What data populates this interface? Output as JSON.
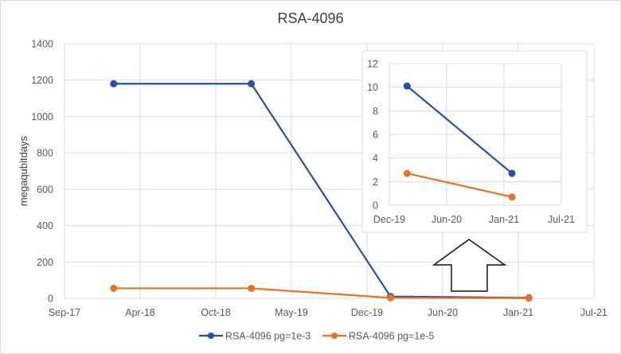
{
  "chart_data": {
    "type": "line",
    "title": "RSA-4096",
    "xlabel": "",
    "ylabel": "megaqubitdays",
    "xlim": [
      "2017-09-25",
      "2021-07-26"
    ],
    "x_tick_step_days": 200,
    "x_tick_labels": [
      "Sep-17",
      "Apr-18",
      "Oct-18",
      "May-19",
      "Dec-19",
      "Jun-20",
      "Jan-21",
      "Jul-21"
    ],
    "ylim": [
      0,
      1400
    ],
    "y_ticks": [
      0,
      200,
      400,
      600,
      800,
      1000,
      1200,
      1400
    ],
    "grid": true,
    "legend_position": "bottom",
    "series": [
      {
        "name": "RSA-4096 pg=1e-3",
        "color": "#2650a8",
        "x": [
          "2018-02-02",
          "2019-02-01",
          "2020-02-04",
          "2021-02-04"
        ],
        "values": [
          1180,
          1180,
          10.1,
          2.7
        ]
      },
      {
        "name": "RSA-4096 pg=1e-5",
        "color": "#e8741f",
        "x": [
          "2018-02-02",
          "2019-02-01",
          "2020-02-04",
          "2021-02-04"
        ],
        "values": [
          55,
          55,
          2.7,
          0.7
        ]
      }
    ],
    "inset": {
      "xlim": [
        "2019-12-04",
        "2021-07-26"
      ],
      "x_tick_labels": [
        "Dec-19",
        "Jun-20",
        "Jan-21",
        "Jul-21"
      ],
      "ylim": [
        0,
        12
      ],
      "y_ticks": [
        0,
        2,
        4,
        6,
        8,
        10,
        12
      ],
      "annotation": "up-arrow pointing from zoomed region to inset"
    }
  }
}
